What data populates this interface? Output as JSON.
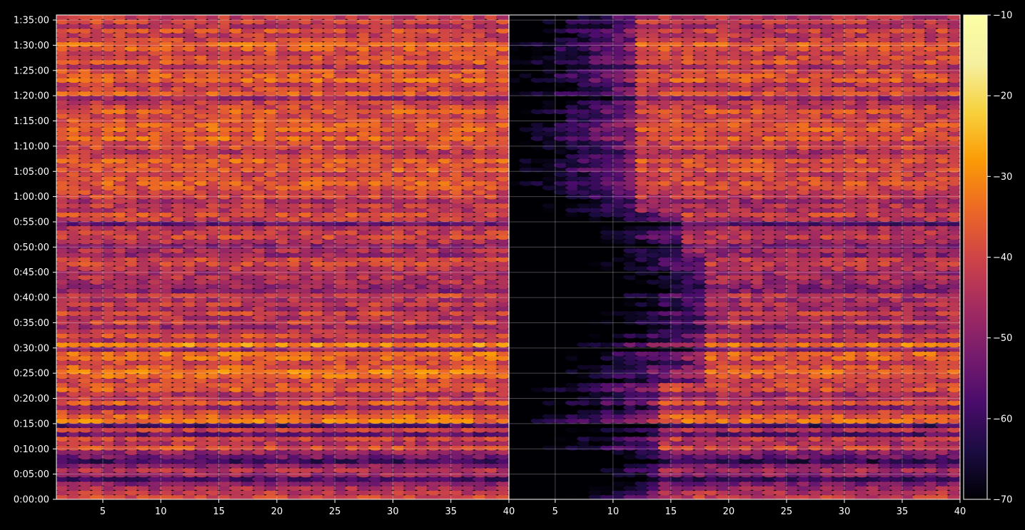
{
  "chart_data": {
    "type": "heatmap",
    "panels": 2,
    "title": "",
    "xlabel": "",
    "ylabel": "",
    "x_ticks": [
      "5",
      "10",
      "15",
      "20",
      "25",
      "30",
      "35",
      "40"
    ],
    "x_range": [
      1,
      40
    ],
    "y_ticks": [
      "0:00:00",
      "0:05:00",
      "0:10:00",
      "0:15:00",
      "0:20:00",
      "0:25:00",
      "0:30:00",
      "0:35:00",
      "0:40:00",
      "0:45:00",
      "0:50:00",
      "0:55:00",
      "1:00:00",
      "1:05:00",
      "1:10:00",
      "1:15:00",
      "1:20:00",
      "1:25:00",
      "1:30:00",
      "1:35:00"
    ],
    "y_range_seconds": [
      0,
      5760
    ],
    "colorbar": {
      "colormap": "inferno",
      "range": [
        -70,
        -10
      ],
      "ticks": [
        "−10",
        "−20",
        "−30",
        "−40",
        "−50",
        "−60",
        "−70"
      ],
      "tick_values": [
        -10,
        -20,
        -30,
        -40,
        -50,
        -60,
        -70
      ]
    },
    "grid": true,
    "background": "#000000",
    "axis_color": "#ffffff",
    "row_levels": [
      -40,
      -42,
      -45,
      -50,
      -58,
      -48,
      -44,
      -50,
      -60,
      -52,
      -48,
      -38,
      -44,
      -40,
      -55,
      -42,
      -58,
      -32,
      -34,
      -40,
      -48,
      -36,
      -42,
      -45,
      -36,
      -38,
      -40,
      -34,
      -32,
      -36,
      -40,
      -34,
      -33,
      -48,
      -30,
      -45,
      -38,
      -44,
      -48,
      -40,
      -45,
      -40,
      -46,
      -42,
      -45,
      -40,
      -50,
      -48,
      -45,
      -44,
      -46,
      -42,
      -40,
      -40,
      -48,
      -45,
      -50,
      -44,
      -40,
      -42,
      -44,
      -55,
      -42,
      -38,
      -44,
      -42,
      -46,
      -40,
      -40,
      -38,
      -36,
      -38,
      -40,
      -36,
      -38,
      -35,
      -40,
      -44,
      -38,
      -40,
      -34,
      -38,
      -35,
      -36,
      -38,
      -40,
      -36,
      -40,
      -42,
      -48,
      -36,
      -40,
      -42,
      -34,
      -36,
      -38,
      -44,
      -36,
      -38,
      -40,
      -36,
      -34,
      -40,
      -42,
      -38,
      -44,
      -40,
      -42
    ]
  }
}
